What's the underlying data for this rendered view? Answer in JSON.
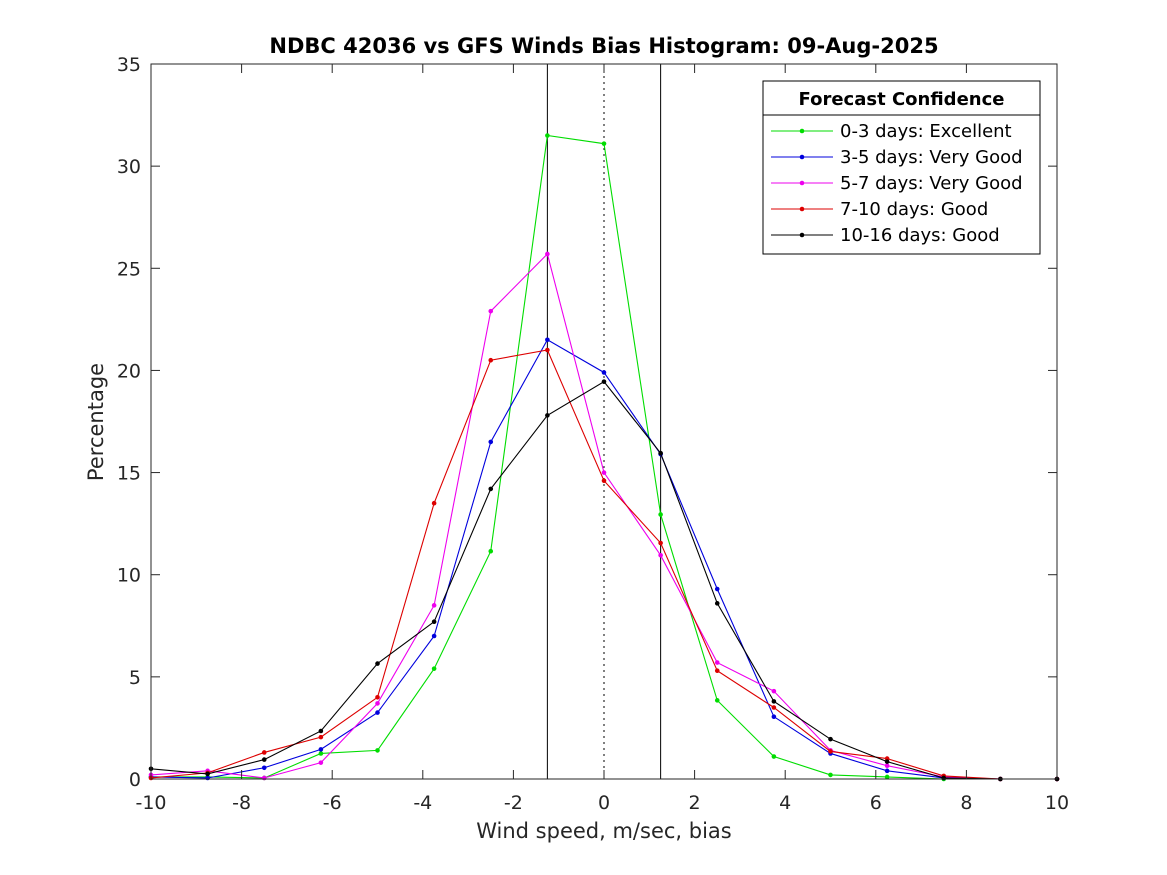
{
  "chart_data": {
    "type": "line",
    "title": "NDBC 42036 vs GFS Winds Bias Histogram: 09-Aug-2025",
    "xlabel": "Wind speed, m/sec, bias",
    "ylabel": "Percentage",
    "xlim": [
      -10,
      10
    ],
    "ylim": [
      0,
      35
    ],
    "xticks": [
      -10,
      -8,
      -6,
      -4,
      -2,
      0,
      2,
      4,
      6,
      8,
      10
    ],
    "yticks": [
      0,
      5,
      10,
      15,
      20,
      25,
      30,
      35
    ],
    "grid": false,
    "x": [
      -10,
      -8.75,
      -7.5,
      -6.25,
      -5,
      -3.75,
      -2.5,
      -1.25,
      0,
      1.25,
      2.5,
      3.75,
      5,
      6.25,
      7.5,
      8.75,
      10
    ],
    "vertical_lines": [
      {
        "x": -1.25,
        "style": "solid"
      },
      {
        "x": 0,
        "style": "dotted"
      },
      {
        "x": 1.25,
        "style": "solid"
      }
    ],
    "legend": {
      "title": "Forecast Confidence",
      "location": "top-right"
    },
    "series": [
      {
        "name": "0-3 days: Excellent",
        "color": "#00dd00",
        "values": [
          0.1,
          0.1,
          0.05,
          1.25,
          1.4,
          5.4,
          11.15,
          31.5,
          31.1,
          12.95,
          3.85,
          1.1,
          0.2,
          0.1,
          0.0,
          0.0,
          0.0
        ]
      },
      {
        "name": "3-5 days: Very Good",
        "color": "#0000dd",
        "values": [
          0.1,
          0.05,
          0.55,
          1.45,
          3.25,
          7.0,
          16.5,
          21.5,
          19.9,
          15.9,
          9.3,
          3.05,
          1.25,
          0.4,
          0.05,
          0.0,
          0.0
        ]
      },
      {
        "name": "5-7 days: Very Good",
        "color": "#ee00ee",
        "values": [
          0.2,
          0.4,
          0.05,
          0.8,
          3.7,
          8.5,
          22.9,
          25.7,
          15.0,
          10.95,
          5.7,
          4.3,
          1.4,
          0.65,
          0.1,
          0.0,
          0.0
        ]
      },
      {
        "name": "7-10 days: Good",
        "color": "#dd0000",
        "values": [
          0.05,
          0.3,
          1.3,
          2.05,
          4.0,
          13.5,
          20.5,
          21.0,
          14.6,
          11.55,
          5.3,
          3.5,
          1.35,
          1.0,
          0.15,
          0.0,
          0.0
        ]
      },
      {
        "name": "10-16 days: Good",
        "color": "#000000",
        "values": [
          0.5,
          0.25,
          0.95,
          2.35,
          5.65,
          7.7,
          14.2,
          17.8,
          19.45,
          15.95,
          8.6,
          3.8,
          1.95,
          0.85,
          0.05,
          0.0,
          0.0
        ]
      }
    ]
  }
}
